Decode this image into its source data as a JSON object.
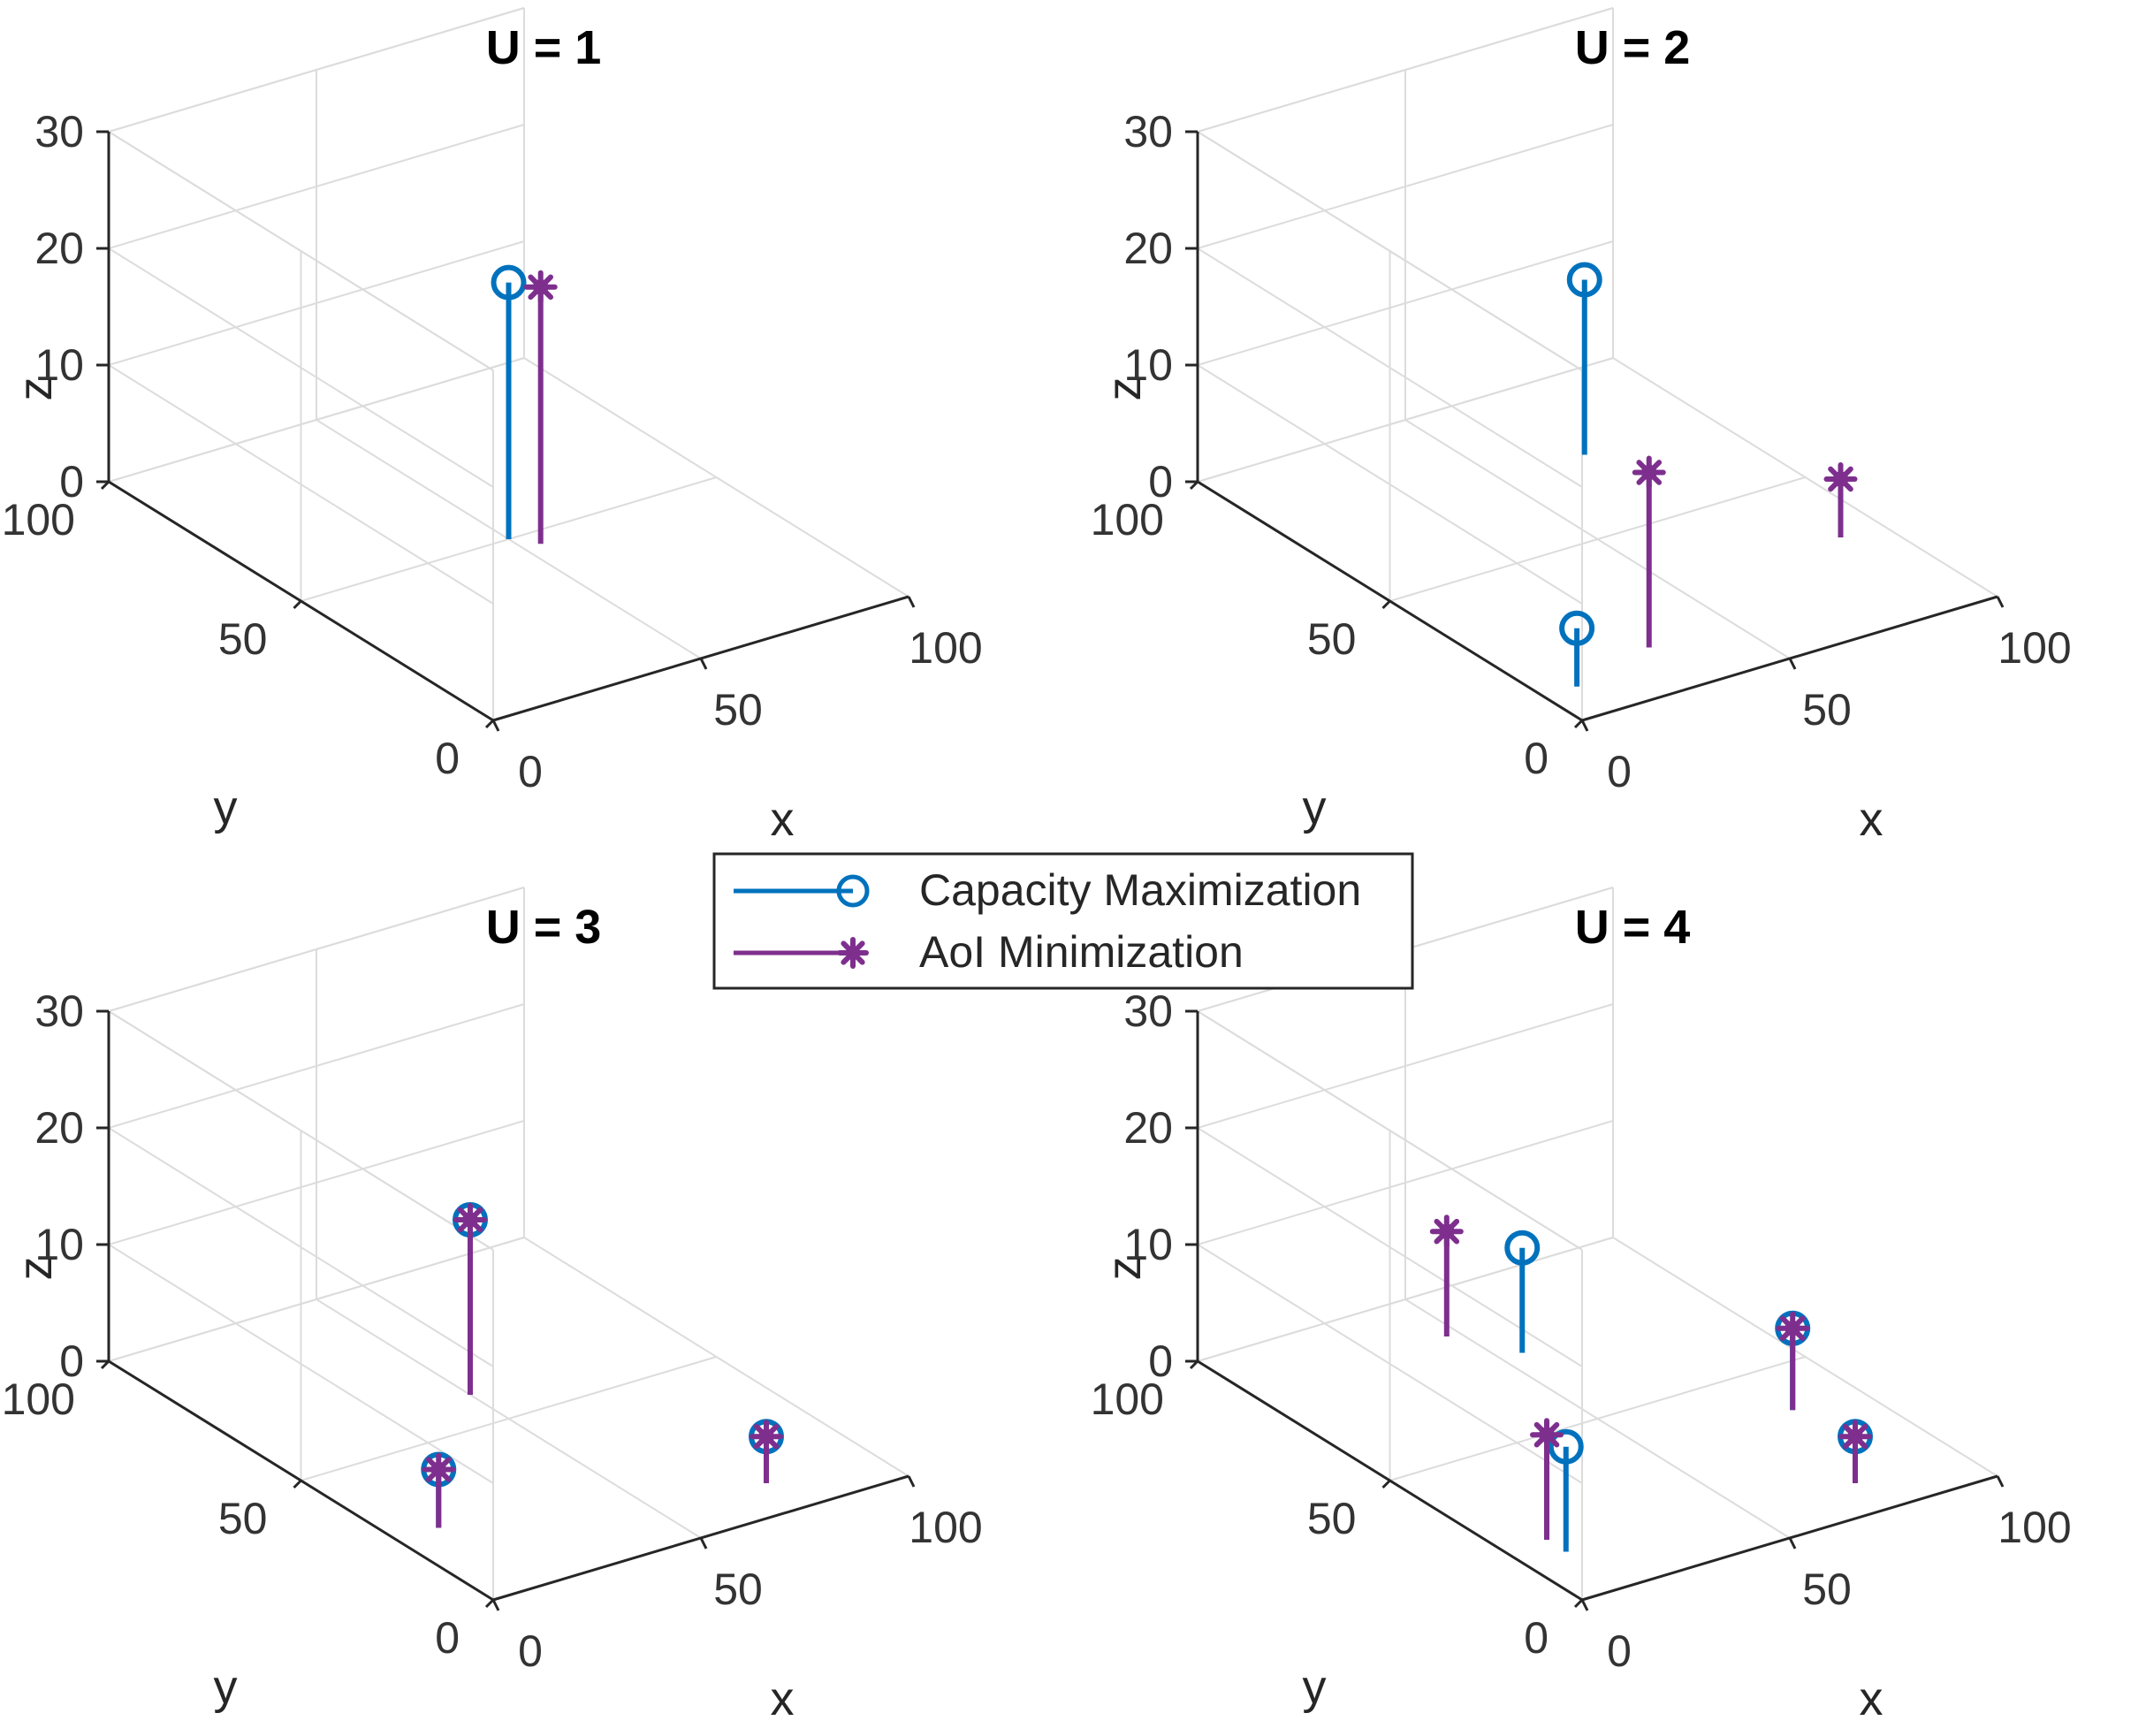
{
  "chart_data": [
    {
      "type": "stem3d",
      "title": "U = 1",
      "xlabel": "x",
      "ylabel": "y",
      "zlabel": "z",
      "xlim": [
        0,
        100
      ],
      "ylim": [
        0,
        100
      ],
      "zlim": [
        0,
        30
      ],
      "xticks": [
        "0",
        "50",
        "100"
      ],
      "yticks": [
        "0",
        "50",
        "100"
      ],
      "zticks": [
        "0",
        "10",
        "20",
        "30"
      ],
      "grid": true,
      "series": [
        {
          "name": "Capacity Maximization",
          "points": [
            {
              "x": 50,
              "y": 50,
              "z": 22
            }
          ]
        },
        {
          "name": "AoI Minimization",
          "points": [
            {
              "x": 54,
              "y": 46,
              "z": 22
            }
          ]
        }
      ]
    },
    {
      "type": "stem3d",
      "title": "U = 2",
      "xlabel": "x",
      "ylabel": "y",
      "zlabel": "z",
      "xlim": [
        0,
        100
      ],
      "ylim": [
        0,
        100
      ],
      "zlim": [
        0,
        30
      ],
      "xticks": [
        "0",
        "50",
        "100"
      ],
      "yticks": [
        "0",
        "50",
        "100"
      ],
      "zticks": [
        "0",
        "10",
        "20",
        "30"
      ],
      "grid": true,
      "series": [
        {
          "name": "Capacity Maximization",
          "points": [
            {
              "x": 70,
              "y": 75,
              "z": 15
            },
            {
              "x": 8,
              "y": 10,
              "z": 5
            }
          ]
        },
        {
          "name": "AoI Minimization",
          "points": [
            {
              "x": 90,
              "y": 30,
              "z": 5
            },
            {
              "x": 30,
              "y": 15,
              "z": 15
            }
          ]
        }
      ]
    },
    {
      "type": "stem3d",
      "title": "U = 3",
      "xlabel": "x",
      "ylabel": "y",
      "zlabel": "z",
      "xlim": [
        0,
        100
      ],
      "ylim": [
        0,
        100
      ],
      "zlim": [
        0,
        30
      ],
      "xticks": [
        "0",
        "50",
        "100"
      ],
      "yticks": [
        "0",
        "50",
        "100"
      ],
      "zticks": [
        "0",
        "10",
        "20",
        "30"
      ],
      "grid": true,
      "series": [
        {
          "name": "Capacity Maximization",
          "points": [
            {
              "x": 50,
              "y": 60,
              "z": 15
            },
            {
              "x": 10,
              "y": 25,
              "z": 5
            },
            {
              "x": 75,
              "y": 10,
              "z": 4
            }
          ]
        },
        {
          "name": "AoI Minimization",
          "points": [
            {
              "x": 50,
              "y": 60,
              "z": 15
            },
            {
              "x": 10,
              "y": 25,
              "z": 5
            },
            {
              "x": 75,
              "y": 10,
              "z": 4
            }
          ]
        }
      ]
    },
    {
      "type": "stem3d",
      "title": "U = 4",
      "xlabel": "x",
      "ylabel": "y",
      "zlabel": "z",
      "xlim": [
        0,
        100
      ],
      "ylim": [
        0,
        100
      ],
      "zlim": [
        0,
        30
      ],
      "xticks": [
        "0",
        "50",
        "100"
      ],
      "yticks": [
        "0",
        "50",
        "100"
      ],
      "zticks": [
        "0",
        "10",
        "20",
        "30"
      ],
      "grid": true,
      "series": [
        {
          "name": "Capacity Maximization",
          "points": [
            {
              "x": 55,
              "y": 75,
              "z": 9
            },
            {
              "x": 10,
              "y": 15,
              "z": 9
            },
            {
              "x": 84,
              "y": 36,
              "z": 7
            },
            {
              "x": 75,
              "y": 10,
              "z": 4
            }
          ]
        },
        {
          "name": "AoI Minimization",
          "points": [
            {
              "x": 47,
              "y": 86,
              "z": 9
            },
            {
              "x": 10,
              "y": 20,
              "z": 9
            },
            {
              "x": 84,
              "y": 36,
              "z": 7
            },
            {
              "x": 75,
              "y": 10,
              "z": 4
            }
          ]
        }
      ]
    }
  ],
  "legend": {
    "entries": [
      {
        "label": "Capacity Maximization",
        "color": "#0072BD",
        "marker": "open-circle"
      },
      {
        "label": "AoI Minimization",
        "color": "#7E2F8E",
        "marker": "asterisk"
      }
    ]
  },
  "colors": {
    "capacity": "#0072BD",
    "aoi": "#7E2F8E",
    "grid": "#DCDCDC",
    "axis": "#262626"
  }
}
